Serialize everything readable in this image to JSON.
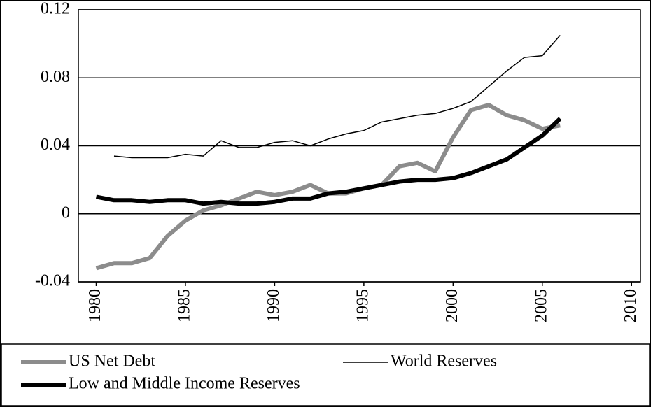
{
  "chart_data": {
    "type": "line",
    "x": [
      1980,
      1981,
      1982,
      1983,
      1984,
      1985,
      1986,
      1987,
      1988,
      1989,
      1990,
      1991,
      1992,
      1993,
      1994,
      1995,
      1996,
      1997,
      1998,
      1999,
      2000,
      2001,
      2002,
      2003,
      2004,
      2005,
      2006
    ],
    "series": [
      {
        "name": "US Net Debt",
        "color": "#8c8c8c",
        "width": 6,
        "values": [
          -0.032,
          -0.029,
          -0.029,
          -0.026,
          -0.013,
          -0.004,
          0.002,
          0.005,
          0.009,
          0.013,
          0.011,
          0.013,
          0.017,
          0.012,
          0.012,
          0.015,
          0.017,
          0.028,
          0.03,
          0.025,
          0.045,
          0.061,
          0.064,
          0.058,
          0.055,
          0.05,
          0.052
        ]
      },
      {
        "name": "World Reserves",
        "color": "#000000",
        "width": 1.5,
        "values": [
          null,
          0.034,
          0.033,
          0.033,
          0.033,
          0.035,
          0.034,
          0.043,
          0.039,
          0.039,
          0.042,
          0.043,
          0.04,
          0.044,
          0.047,
          0.049,
          0.054,
          0.056,
          0.058,
          0.059,
          0.062,
          0.066,
          0.075,
          0.084,
          0.092,
          0.093,
          0.105
        ]
      },
      {
        "name": "Low and Middle Income Reserves",
        "color": "#000000",
        "width": 6,
        "values": [
          0.01,
          0.008,
          0.008,
          0.007,
          0.008,
          0.008,
          0.006,
          0.007,
          0.006,
          0.006,
          0.007,
          0.009,
          0.009,
          0.012,
          0.013,
          0.015,
          0.017,
          0.019,
          0.02,
          0.02,
          0.021,
          0.024,
          0.028,
          0.032,
          0.039,
          0.046,
          0.056
        ]
      }
    ],
    "xlim": [
      1979,
      2010.5
    ],
    "xticks": [
      1980,
      1985,
      1990,
      1995,
      2000,
      2005,
      2010
    ],
    "ylim": [
      -0.04,
      0.12
    ],
    "yticks": [
      -0.04,
      0,
      0.04,
      0.08,
      0.12
    ],
    "grid": true,
    "legend": "bottom"
  }
}
